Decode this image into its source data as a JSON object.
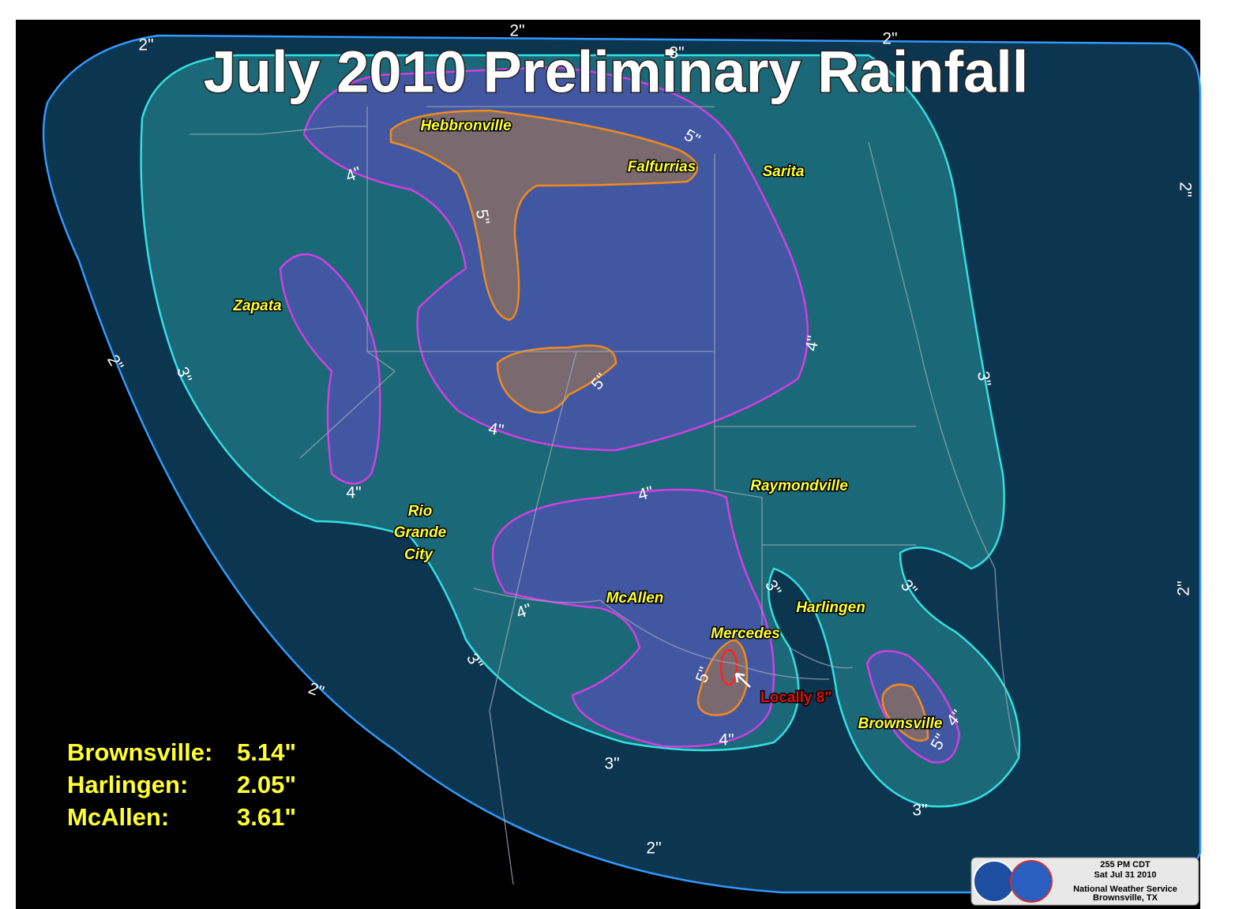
{
  "header": {
    "title": "July 2010 Preliminary Rainfall"
  },
  "cities": [
    "Hebbronville",
    "Falfurrias",
    "Sarita",
    "Zapata",
    "Raymondville",
    "McAllen",
    "Harlingen",
    "Mercedes",
    "Brownsville"
  ],
  "rio_grande_city": [
    "Rio",
    "Grande",
    "City"
  ],
  "contour_labels": [
    "2\"",
    "2\"",
    "2\"",
    "3\"",
    "2\"",
    "2\"",
    "2\"",
    "2\"",
    "2\"",
    "3\"",
    "3\"",
    "3\"",
    "3\"",
    "3\"",
    "3\"",
    "3\"",
    "4\"",
    "4\"",
    "4\"",
    "4\"",
    "4\"",
    "4\"",
    "4\"",
    "4\"",
    "5\"",
    "5\"",
    "5\"",
    "5\"",
    "5\""
  ],
  "note": "Locally 8\"",
  "stats": [
    {
      "name": "Brownsville:",
      "value": "5.14\""
    },
    {
      "name": "Harlingen:",
      "value": "2.05\""
    },
    {
      "name": "McAllen:",
      "value": "3.61\""
    }
  ],
  "footer": {
    "time": "255 PM CDT",
    "date": "Sat Jul 31 2010",
    "agency": "National Weather Service",
    "location": "Brownsville, TX"
  }
}
